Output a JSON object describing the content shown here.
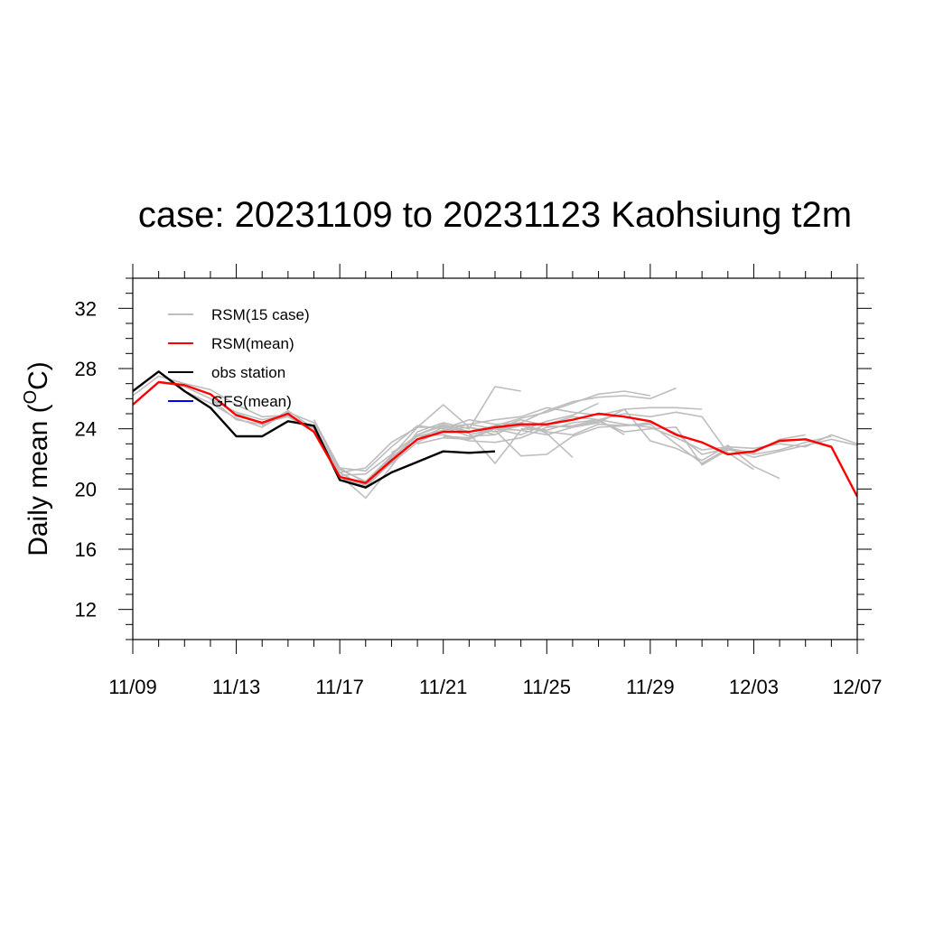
{
  "chart_data": {
    "type": "line",
    "title": "case: 20231109 to 20231123 Kaohsiung t2m",
    "ylabel": "Daily mean (°C)",
    "ylabel_main": "Daily mean (",
    "ylabel_sup": "O",
    "ylabel_unit": "C)",
    "xlabel": "",
    "x_dates": [
      "11/09",
      "11/10",
      "11/11",
      "11/12",
      "11/13",
      "11/14",
      "11/15",
      "11/16",
      "11/17",
      "11/18",
      "11/19",
      "11/20",
      "11/21",
      "11/22",
      "11/23",
      "11/24",
      "11/25",
      "11/26",
      "11/27",
      "11/28",
      "11/29",
      "11/30",
      "12/01",
      "12/02",
      "12/03",
      "12/04",
      "12/05",
      "12/06",
      "12/07"
    ],
    "xlim": [
      "11/09",
      "12/07"
    ],
    "ylim": [
      10,
      34
    ],
    "x_ticks": [
      "11/09",
      "11/13",
      "11/17",
      "11/21",
      "11/25",
      "11/29",
      "12/03",
      "12/07"
    ],
    "y_ticks": [
      12,
      16,
      20,
      24,
      28,
      32
    ],
    "legend": {
      "position": "top-left",
      "entries": [
        {
          "label": "RSM(15 case)",
          "color": "#bdbdbd"
        },
        {
          "label": "RSM(mean)",
          "color": "#ff0000"
        },
        {
          "label": "obs station",
          "color": "#000000"
        },
        {
          "label": "GFS(mean)",
          "color": "#0000ff"
        }
      ]
    },
    "series": [
      {
        "name": "obs station",
        "color": "#000000",
        "start": "11/09",
        "values": [
          26.5,
          27.8,
          26.5,
          25.4,
          23.5,
          23.5,
          24.5,
          24.2,
          20.6,
          20.1,
          21.1,
          21.8,
          22.5,
          22.4,
          22.5
        ]
      },
      {
        "name": "RSM(mean)",
        "color": "#ff0000",
        "start": "11/09",
        "values": [
          25.6,
          27.1,
          26.9,
          26.3,
          24.9,
          24.4,
          25.0,
          23.8,
          20.8,
          20.4,
          21.9,
          23.3,
          23.8,
          23.8,
          24.1,
          24.3,
          24.3,
          24.6,
          25.0,
          24.8,
          24.5,
          23.6,
          23.1,
          22.3,
          22.5,
          23.2,
          23.3,
          22.8,
          19.5
        ]
      }
    ],
    "rsm_members": [
      {
        "start": "11/09",
        "values": [
          26.2,
          27.5,
          27.0,
          26.6,
          25.6,
          24.8,
          24.9,
          24.1,
          21.3,
          20.5,
          22.2,
          24.1,
          25.6,
          24.1,
          23.6
        ]
      },
      {
        "start": "11/10",
        "values": [
          27.1,
          26.8,
          26.0,
          24.6,
          24.3,
          24.9,
          23.8,
          20.9,
          19.4,
          21.5,
          23.8,
          24.4,
          24.0,
          26.8,
          26.5
        ]
      },
      {
        "start": "11/11",
        "values": [
          26.5,
          25.7,
          24.7,
          24.1,
          25.1,
          24.4,
          21.4,
          20.4,
          22.1,
          23.5,
          23.9,
          24.1,
          23.8,
          24.2,
          23.9
        ]
      },
      {
        "start": "11/12",
        "values": [
          26.0,
          25.1,
          24.6,
          24.9,
          24.0,
          21.1,
          20.1,
          21.8,
          23.3,
          24.1,
          23.5,
          23.6,
          24.4,
          23.7,
          22.1
        ]
      },
      {
        "start": "11/13",
        "values": [
          25.0,
          24.4,
          24.8,
          23.8,
          20.8,
          20.2,
          22.0,
          23.6,
          24.2,
          23.7,
          21.7,
          23.9,
          24.5,
          24.9,
          25.7
        ]
      },
      {
        "start": "11/14",
        "values": [
          24.2,
          25.2,
          24.0,
          20.6,
          20.3,
          21.7,
          23.1,
          23.9,
          24.3,
          24.0,
          23.6,
          24.3,
          24.8,
          24.6,
          23.6
        ]
      },
      {
        "start": "11/15",
        "values": [
          24.8,
          24.1,
          20.9,
          21.0,
          22.3,
          23.6,
          24.3,
          23.8,
          24.2,
          24.7,
          25.1,
          25.7,
          26.3,
          26.5,
          26.2
        ]
      },
      {
        "start": "11/16",
        "values": [
          24.6,
          21.4,
          21.2,
          22.8,
          24.2,
          24.0,
          24.6,
          24.3,
          24.4,
          25.2,
          25.8,
          26.1,
          26.2,
          26.0,
          26.7
        ]
      },
      {
        "start": "11/17",
        "values": [
          21.1,
          21.4,
          23.1,
          24.1,
          24.1,
          24.3,
          24.6,
          24.8,
          25.4,
          25.1,
          24.9,
          25.3,
          25.4,
          25.4,
          25.3
        ]
      },
      {
        "start": "11/19",
        "values": [
          22.4,
          23.5,
          23.6,
          23.2,
          23.1,
          23.4,
          24.1,
          24.2,
          24.6,
          25.0,
          24.8,
          25.1,
          24.8,
          22.4,
          21.3
        ]
      },
      {
        "start": "11/20",
        "values": [
          23.0,
          23.4,
          23.3,
          24.0,
          24.6,
          24.2,
          24.1,
          24.4,
          25.3,
          23.2,
          22.7,
          21.9,
          22.9,
          21.5,
          20.7
        ]
      },
      {
        "start": "11/21",
        "values": [
          23.5,
          23.4,
          24.0,
          24.2,
          23.8,
          23.6,
          24.3,
          24.2,
          24.3,
          23.0,
          21.7,
          22.7,
          22.4,
          23.3,
          23.6
        ]
      },
      {
        "start": "11/22",
        "values": [
          23.6,
          24.0,
          23.9,
          23.6,
          24.1,
          24.5,
          23.8,
          24.0,
          24.1,
          21.6,
          22.6,
          22.3,
          22.6,
          23.1,
          23.5
        ]
      },
      {
        "start": "11/23",
        "values": [
          23.9,
          22.2,
          22.3,
          23.5,
          24.1,
          24.2,
          24.4,
          23.7,
          22.3,
          22.7,
          22.1,
          22.5,
          22.9,
          23.3,
          22.9
        ]
      },
      {
        "start": "11/24",
        "values": [
          24.0,
          23.9,
          24.4,
          24.6,
          24.3,
          24.1,
          23.4,
          22.6,
          22.8,
          22.7,
          23.0,
          22.8,
          23.6,
          23.0,
          24.2
        ]
      }
    ]
  }
}
